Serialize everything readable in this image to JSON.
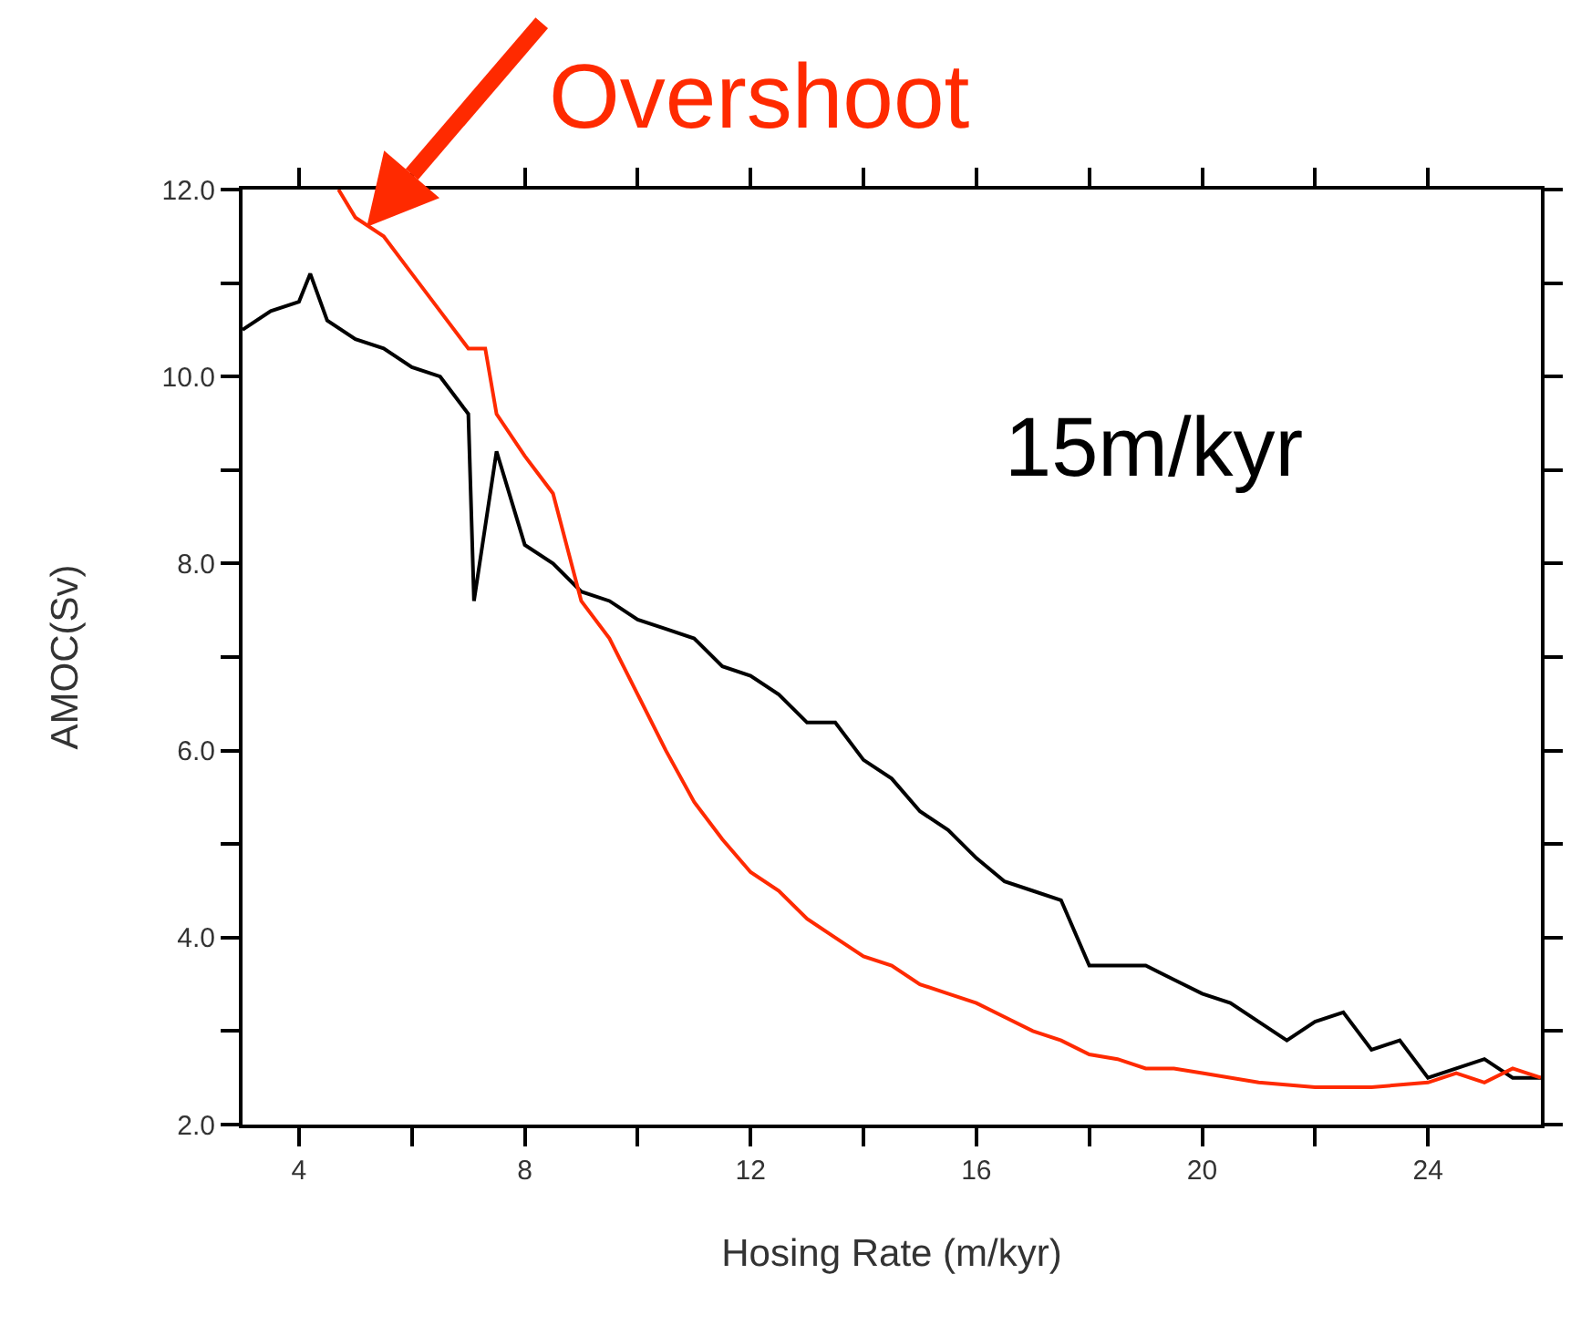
{
  "chart_data": {
    "type": "line",
    "xlabel": "Hosing Rate (m/kyr)",
    "ylabel": "AMOC(Sv)",
    "xlim": [
      3,
      26
    ],
    "ylim": [
      2,
      12
    ],
    "xticks": [
      {
        "value": 4,
        "label": "4"
      },
      {
        "value": 6,
        "label": null
      },
      {
        "value": 8,
        "label": "8"
      },
      {
        "value": 10,
        "label": null
      },
      {
        "value": 12,
        "label": "12"
      },
      {
        "value": 14,
        "label": null
      },
      {
        "value": 16,
        "label": "16"
      },
      {
        "value": 18,
        "label": null
      },
      {
        "value": 20,
        "label": "20"
      },
      {
        "value": 22,
        "label": null
      },
      {
        "value": 24,
        "label": "24"
      }
    ],
    "yticks": [
      {
        "value": 2,
        "label": "2.0"
      },
      {
        "value": 3,
        "label": null
      },
      {
        "value": 4,
        "label": "4.0"
      },
      {
        "value": 5,
        "label": null
      },
      {
        "value": 6,
        "label": "6.0"
      },
      {
        "value": 7,
        "label": null
      },
      {
        "value": 8,
        "label": "8.0"
      },
      {
        "value": 9,
        "label": null
      },
      {
        "value": 10,
        "label": "10.0"
      },
      {
        "value": 11,
        "label": null
      },
      {
        "value": 12,
        "label": "12.0"
      }
    ],
    "grid": false,
    "marker": "none",
    "line_style": "solid",
    "annotations": [
      {
        "text": "Overshoot",
        "x": 5.2,
        "y": 11.6
      },
      "15m/kyr"
    ],
    "series": [
      {
        "color": "#000000",
        "x": [
          3,
          3.5,
          4,
          4.2,
          4.5,
          5,
          5.5,
          6,
          6.5,
          7,
          7.1,
          7.5,
          8,
          8.5,
          9,
          9.5,
          10,
          10.5,
          11,
          11.5,
          12,
          12.5,
          13,
          13.5,
          14,
          14.5,
          15,
          15.5,
          16,
          16.5,
          17,
          17.5,
          18,
          18.5,
          19,
          19.5,
          20,
          20.5,
          21,
          21.5,
          22,
          22.5,
          23,
          23.5,
          24,
          24.5,
          25,
          25.5,
          26
        ],
        "values": [
          10.5,
          10.7,
          10.8,
          11.1,
          10.6,
          10.4,
          10.3,
          10.1,
          10.0,
          9.6,
          7.6,
          9.2,
          8.2,
          8.0,
          7.7,
          7.6,
          7.4,
          7.3,
          7.2,
          6.9,
          6.8,
          6.6,
          6.3,
          6.3,
          5.9,
          5.7,
          5.35,
          5.15,
          4.85,
          4.6,
          4.5,
          4.4,
          3.7,
          3.7,
          3.7,
          3.55,
          3.4,
          3.3,
          3.1,
          2.9,
          3.1,
          3.2,
          2.8,
          2.9,
          2.5,
          2.6,
          2.7,
          2.5,
          2.5
        ]
      },
      {
        "color": "#ff2a00",
        "x": [
          4.7,
          5,
          5.5,
          6,
          6.5,
          7,
          7.3,
          7.5,
          8,
          8.5,
          9,
          9.5,
          10,
          10.5,
          11,
          11.5,
          12,
          12.5,
          13,
          13.5,
          14,
          14.5,
          15,
          15.5,
          16,
          16.5,
          17,
          17.5,
          18,
          18.5,
          19,
          19.5,
          20,
          21,
          22,
          23,
          24,
          24.5,
          25,
          25.5,
          26
        ],
        "values": [
          12.0,
          11.7,
          11.5,
          11.1,
          10.7,
          10.3,
          10.3,
          9.6,
          9.15,
          8.75,
          7.6,
          7.2,
          6.6,
          6.0,
          5.45,
          5.05,
          4.7,
          4.5,
          4.2,
          4.0,
          3.8,
          3.7,
          3.5,
          3.4,
          3.3,
          3.15,
          3.0,
          2.9,
          2.75,
          2.7,
          2.6,
          2.6,
          2.55,
          2.45,
          2.4,
          2.4,
          2.45,
          2.55,
          2.45,
          2.6,
          2.5
        ]
      }
    ]
  }
}
